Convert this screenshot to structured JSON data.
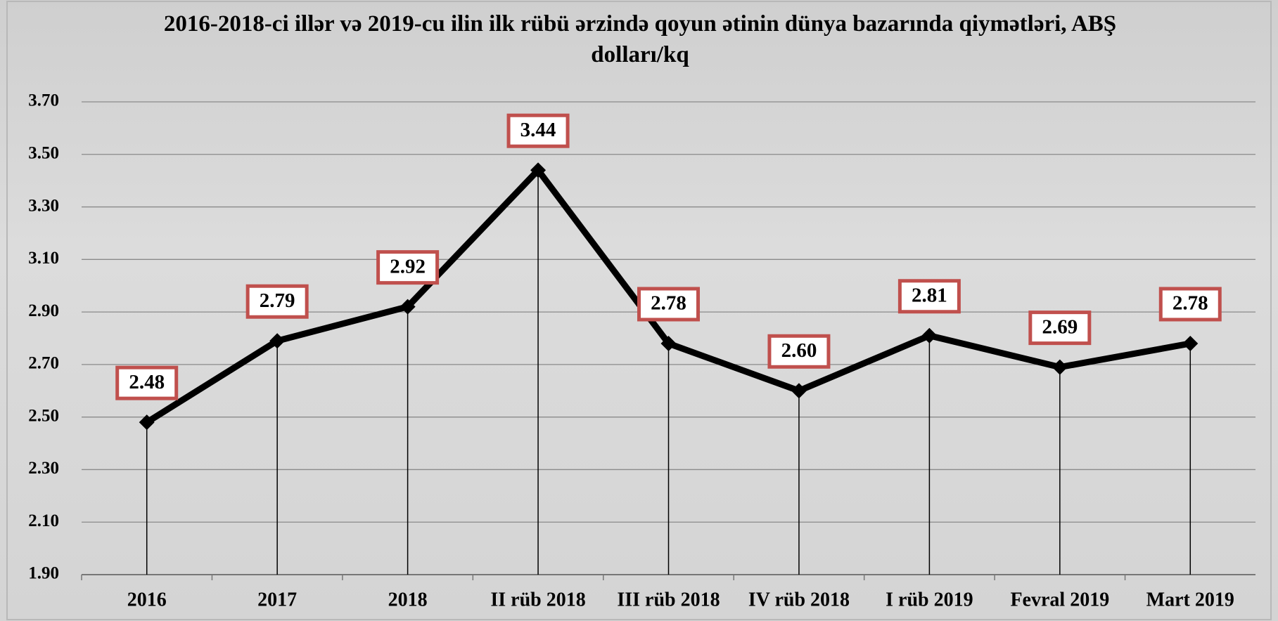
{
  "chart_data": {
    "type": "line",
    "title": "2016-2018-ci illər və 2019-cu ilin ilk rübü ərzində qoyun ətinin dünya bazarında qiymətləri, ABŞ dolları/kq",
    "categories": [
      "2016",
      "2017",
      "2018",
      "II rüb 2018",
      "III rüb 2018",
      "IV rüb 2018",
      "I rüb 2019",
      "Fevral 2019",
      "Mart 2019"
    ],
    "values": [
      2.48,
      2.79,
      2.92,
      3.44,
      2.78,
      2.6,
      2.81,
      2.69,
      2.78
    ],
    "value_labels": [
      "2.48",
      "2.79",
      "2.92",
      "3.44",
      "2.78",
      "2.60",
      "2.81",
      "2.69",
      "2.78"
    ],
    "color": "#000000",
    "ylim": [
      1.9,
      3.7
    ],
    "yticks": [
      {
        "value": 1.9,
        "label": "1.90"
      },
      {
        "value": 2.1,
        "label": "2.10"
      },
      {
        "value": 2.3,
        "label": "2.30"
      },
      {
        "value": 2.5,
        "label": "2.50"
      },
      {
        "value": 2.7,
        "label": "2.70"
      },
      {
        "value": 2.9,
        "label": "2.90"
      },
      {
        "value": 3.1,
        "label": "3.10"
      },
      {
        "value": 3.3,
        "label": "3.30"
      },
      {
        "value": 3.5,
        "label": "3.50"
      },
      {
        "value": 3.7,
        "label": "3.70"
      }
    ],
    "grid": true
  }
}
